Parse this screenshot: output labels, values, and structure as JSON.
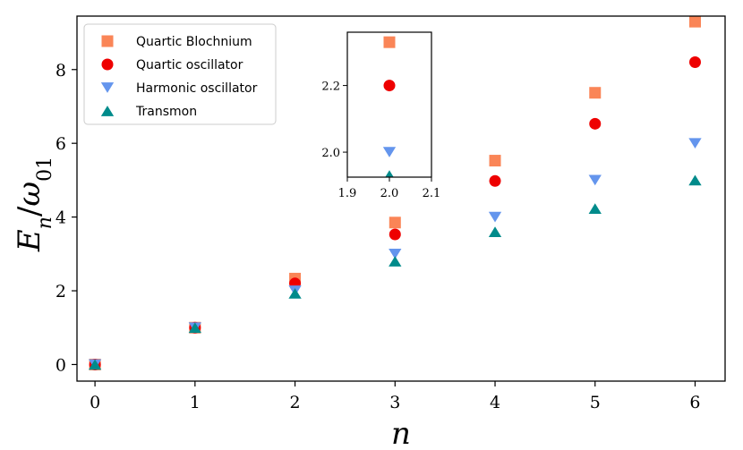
{
  "chart_data": {
    "type": "scatter",
    "xlabel": "n",
    "ylabel_main": "E",
    "ylabel_sub1": "n",
    "ylabel_slash": "/",
    "ylabel_omega": "ω",
    "ylabel_sub2": "01",
    "xlim": [
      -0.18,
      6.3
    ],
    "ylim": [
      -0.45,
      9.45
    ],
    "xticks": [
      0,
      1,
      2,
      3,
      4,
      5,
      6
    ],
    "yticks": [
      0,
      2,
      4,
      6,
      8
    ],
    "grid": false,
    "legend_position": "top-left",
    "series": [
      {
        "name": "Quartic Blochnium",
        "marker": "square",
        "color": "#fa8557",
        "x": [
          0,
          1,
          2,
          3,
          4,
          5,
          6
        ],
        "y": [
          0.0,
          1.0,
          2.33,
          3.85,
          5.53,
          7.37,
          9.3
        ]
      },
      {
        "name": "Quartic oscillator",
        "marker": "circle",
        "color": "#ee0000",
        "x": [
          0,
          1,
          2,
          3,
          4,
          5,
          6
        ],
        "y": [
          0.0,
          1.0,
          2.2,
          3.53,
          4.98,
          6.53,
          8.2
        ]
      },
      {
        "name": "Harmonic oscillator",
        "marker": "triangle-down",
        "color": "#6495ed",
        "x": [
          0,
          1,
          2,
          3,
          4,
          5,
          6
        ],
        "y": [
          0.0,
          1.0,
          2.0,
          3.0,
          4.0,
          5.0,
          6.0
        ]
      },
      {
        "name": "Transmon",
        "marker": "triangle-up",
        "color": "#008b8b",
        "x": [
          0,
          1,
          2,
          3,
          4,
          5,
          6
        ],
        "y": [
          0.0,
          1.0,
          1.93,
          2.8,
          3.6,
          4.23,
          5.0
        ]
      }
    ],
    "inset": {
      "xlim": [
        1.9,
        2.1
      ],
      "ylim": [
        1.925,
        2.36
      ],
      "xticks": [
        1.9,
        2.0,
        2.1
      ],
      "yticks": [
        2.0,
        2.2
      ],
      "xtick_labels": [
        "1.9",
        "2.0",
        "2.1"
      ],
      "ytick_labels": [
        "2.0",
        "2.2"
      ]
    }
  }
}
